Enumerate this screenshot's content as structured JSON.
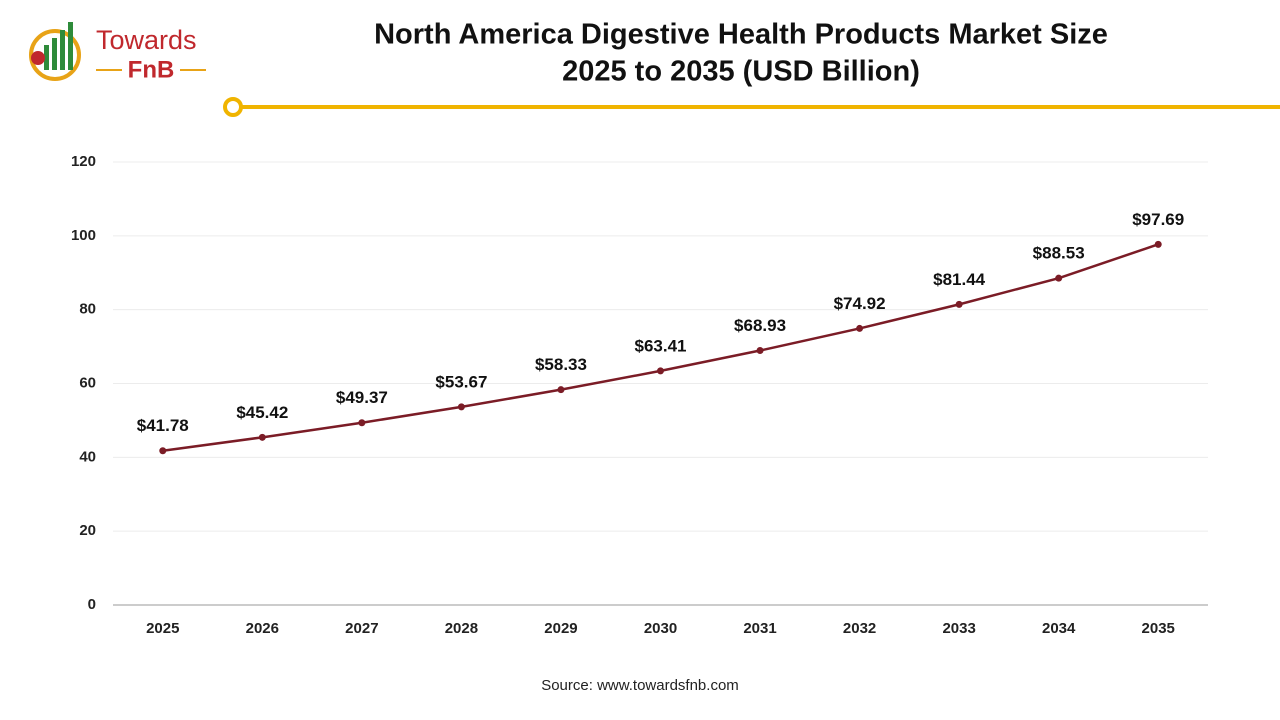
{
  "logo": {
    "name": "Towards",
    "sub": "FnB"
  },
  "chart_data": {
    "type": "line",
    "title": "North America Digestive Health Products Market Size",
    "subtitle": "2025 to 2035 (USD Billion)",
    "categories": [
      "2025",
      "2026",
      "2027",
      "2028",
      "2029",
      "2030",
      "2031",
      "2032",
      "2033",
      "2034",
      "2035"
    ],
    "values": [
      41.78,
      45.42,
      49.37,
      53.67,
      58.33,
      63.41,
      68.93,
      74.92,
      81.44,
      88.53,
      97.69
    ],
    "value_labels": [
      "$41.78",
      "$45.42",
      "$49.37",
      "$53.67",
      "$58.33",
      "$63.41",
      "$68.93",
      "$74.92",
      "$81.44",
      "$88.53",
      "$97.69"
    ],
    "color": "#7b1c26",
    "ylim": [
      0,
      120
    ],
    "yticks": [
      0,
      20,
      40,
      60,
      80,
      100,
      120
    ],
    "grid": true,
    "source": "Source: www.towardsfnb.com"
  }
}
